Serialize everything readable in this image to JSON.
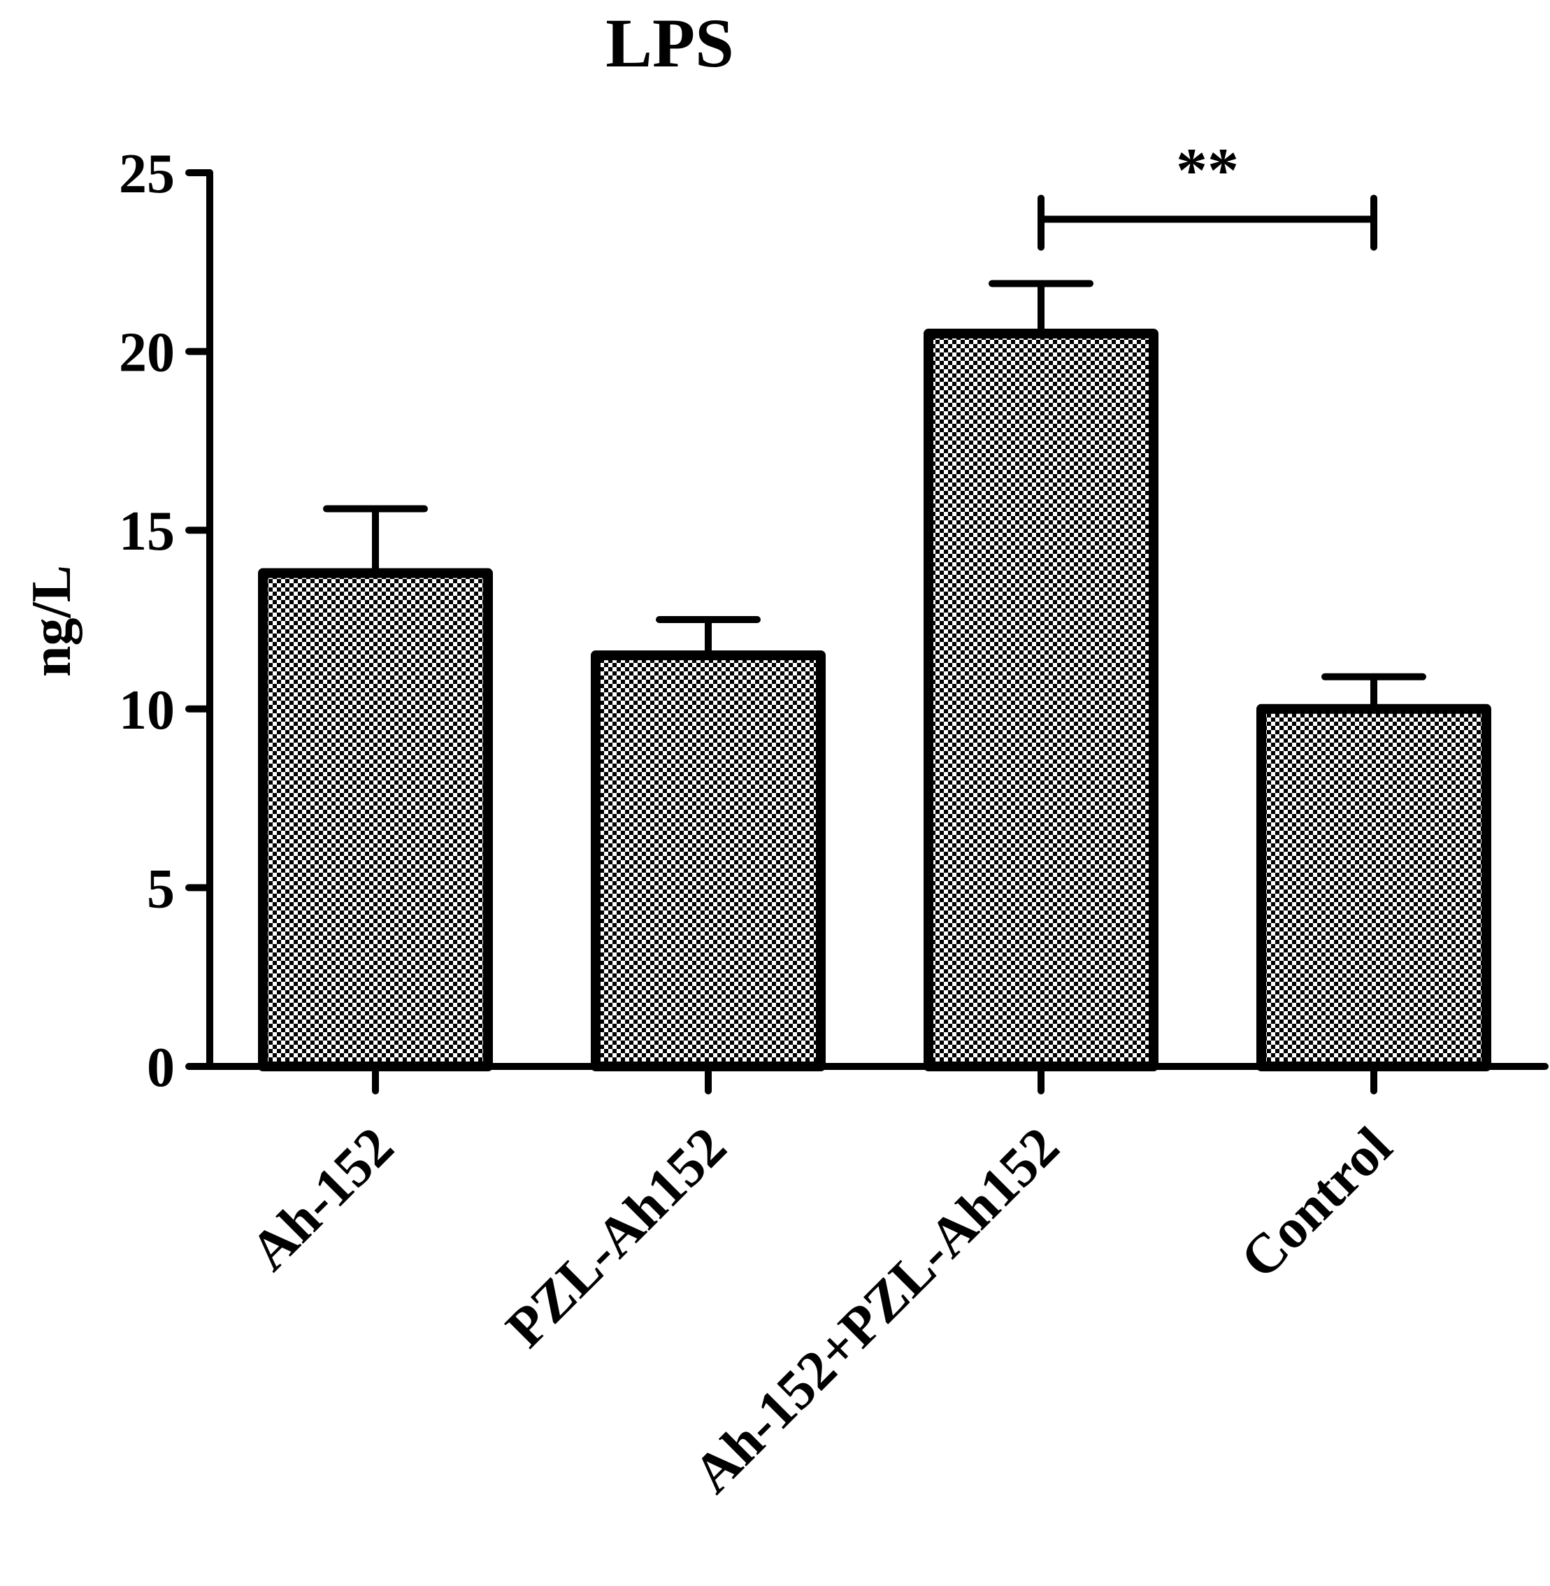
{
  "chart_data": {
    "type": "bar",
    "title": "LPS",
    "xlabel": "",
    "ylabel": "ng/L",
    "ylim": [
      0,
      25
    ],
    "yticks": [
      "0",
      "5",
      "10",
      "15",
      "20",
      "25"
    ],
    "categories": [
      "Ah-152",
      "PZL-Ah152",
      "Ah-152+PZL-Ah152",
      "Control"
    ],
    "values": [
      13.8,
      11.5,
      20.5,
      10.0
    ],
    "errors": [
      1.8,
      1.0,
      1.4,
      0.9
    ],
    "grid": false,
    "bar_fill": "checkerboard",
    "colors": {
      "ink": "#000000",
      "background": "#ffffff"
    },
    "significance": [
      {
        "from": "Ah-152+PZL-Ah152",
        "to": "Control",
        "y": 23.7,
        "label": "**"
      }
    ]
  }
}
